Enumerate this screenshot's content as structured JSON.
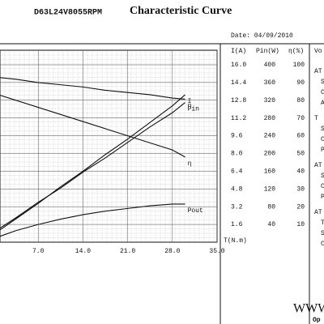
{
  "chart_data": {
    "type": "line",
    "model": "D63L24V8055RPM",
    "title": "Characteristic Curve",
    "date": "Date: 04/09/2010",
    "xlabel": "T(N.m)",
    "x": [
      0,
      3.5,
      7,
      10.5,
      14,
      17.5,
      21,
      24.5,
      28,
      30
    ],
    "xlim": [
      0,
      35
    ],
    "xticks": [
      {
        "value": 7,
        "label": "7.0"
      },
      {
        "value": 14,
        "label": "14.0"
      },
      {
        "value": 21,
        "label": "21.0"
      },
      {
        "value": 28,
        "label": "28.0"
      },
      {
        "value": 35,
        "label": "35.0"
      }
    ],
    "ylabel": "I(A)",
    "ylim": [
      0,
      16
    ],
    "yticks": [
      {
        "value": 16,
        "label": "16.0"
      },
      {
        "value": 14.4,
        "label": "14.4"
      },
      {
        "value": 12.8,
        "label": "12.8"
      },
      {
        "value": 11.2,
        "label": "11.2"
      },
      {
        "value": 9.6,
        "label": "9.6"
      },
      {
        "value": 8,
        "label": "8.0"
      },
      {
        "value": 6.4,
        "label": "6.4"
      },
      {
        "value": 4.8,
        "label": "4.8"
      },
      {
        "value": 3.2,
        "label": "3.2"
      },
      {
        "value": 1.6,
        "label": "1.6"
      }
    ],
    "y2label": "Pin(W)",
    "y2lim": [
      0,
      400
    ],
    "y2ticks": [
      400,
      360,
      320,
      280,
      240,
      200,
      160,
      120,
      80,
      40
    ],
    "y3label": "η(%)",
    "y3lim": [
      0,
      100
    ],
    "y3ticks": [
      100,
      90,
      80,
      70,
      60,
      50,
      40,
      30,
      20,
      10
    ],
    "grid": true,
    "series": [
      {
        "name": "n",
        "color": "#111111",
        "axis": "y",
        "values": [
          14.9,
          14.7,
          14.4,
          14.2,
          14.0,
          13.7,
          13.5,
          13.3,
          13.0,
          12.9
        ]
      },
      {
        "name": "I",
        "color": "#111111",
        "axis": "y",
        "values": [
          0.7,
          2.1,
          3.5,
          5.0,
          6.4,
          7.9,
          9.3,
          10.8,
          12.3,
          13.3
        ]
      },
      {
        "name": "Pin",
        "color": "#111111",
        "axis": "y2",
        "values": [
          22,
          55,
          90,
          122,
          158,
          190,
          225,
          260,
          292,
          315
        ]
      },
      {
        "name": "η",
        "color": "#111111",
        "axis": "y3",
        "values": [
          84,
          80,
          76,
          72,
          68,
          64,
          60,
          56,
          52,
          48
        ]
      },
      {
        "name": "Pout",
        "color": "#111111",
        "axis": "y2",
        "values": [
          8,
          26,
          40,
          52,
          62,
          70,
          76,
          82,
          86,
          86
        ]
      }
    ],
    "side_header": "Vo",
    "side_notes": [
      "AT",
      "S",
      "C",
      "AT",
      "T",
      "S",
      "C",
      "P",
      "AT",
      "S",
      "C",
      "P",
      "AT",
      "T",
      "S",
      "C"
    ],
    "footer": "WWW",
    "footer_note": "Op"
  }
}
